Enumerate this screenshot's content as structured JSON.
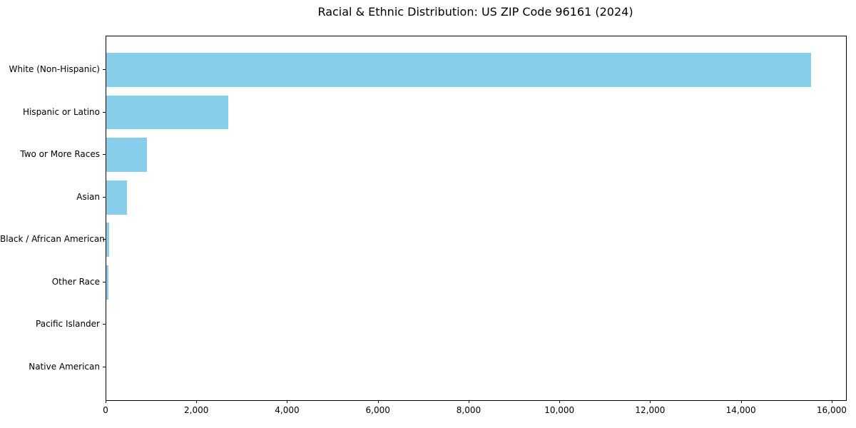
{
  "chart_data": {
    "type": "bar",
    "orientation": "horizontal",
    "title": "Racial & Ethnic Distribution: US ZIP Code 96161 (2024)",
    "categories": [
      "White (Non-Hispanic)",
      "Hispanic or Latino",
      "Two or More Races",
      "Asian",
      "Black / African American",
      "Other Race",
      "Pacific Islander",
      "Native American"
    ],
    "values": [
      15530,
      2690,
      890,
      450,
      70,
      50,
      0,
      0
    ],
    "xlabel": "",
    "ylabel": "",
    "xlim": [
      0,
      16300
    ],
    "x_ticks": [
      0,
      2000,
      4000,
      6000,
      8000,
      10000,
      12000,
      14000,
      16000
    ],
    "x_tick_labels": [
      "0",
      "2,000",
      "4,000",
      "6,000",
      "8,000",
      "10,000",
      "12,000",
      "14,000",
      "16,000"
    ],
    "bar_color": "#87CEEB",
    "axis_color": "#000000",
    "background_color": "#ffffff",
    "legend": "none",
    "grid": false
  }
}
